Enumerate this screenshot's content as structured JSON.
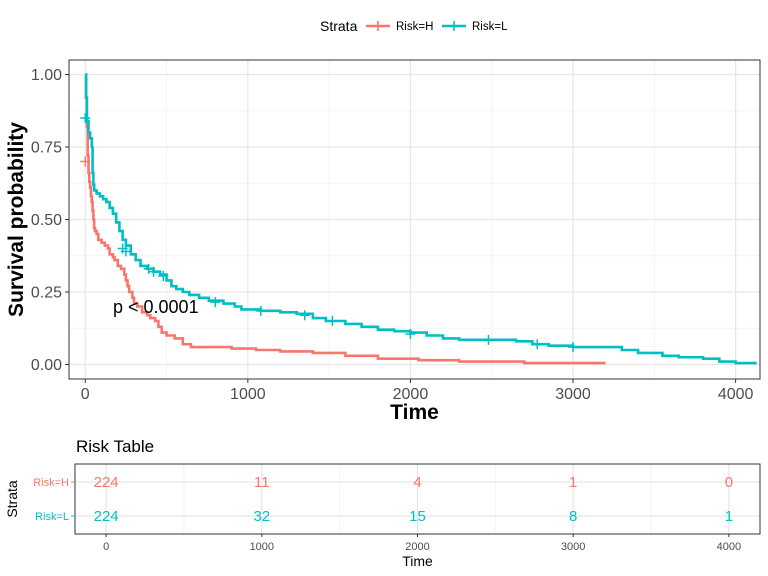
{
  "chart_data": [
    {
      "type": "line",
      "subtype": "kaplan-meier",
      "title": "",
      "xlabel": "Time",
      "ylabel": "Survival probability",
      "xlim": [
        -100,
        4150
      ],
      "ylim": [
        -0.05,
        1.05
      ],
      "x_ticks": [
        0,
        1000,
        2000,
        3000,
        4000
      ],
      "x_tick_labels": [
        "0",
        "1000",
        "2000",
        "3000",
        "4000"
      ],
      "y_ticks": [
        0,
        0.25,
        0.5,
        0.75,
        1.0
      ],
      "y_tick_labels": [
        "0.00",
        "0.25",
        "0.50",
        "0.75",
        "1.00"
      ],
      "grid": true,
      "legend": {
        "title": "Strata",
        "position": "top"
      },
      "annotation": "p < 0.0001",
      "series": [
        {
          "name": "Risk=H",
          "color": "#F8766D",
          "points": [
            [
              0,
              1.0
            ],
            [
              5,
              0.92
            ],
            [
              10,
              0.82
            ],
            [
              15,
              0.72
            ],
            [
              20,
              0.66
            ],
            [
              25,
              0.63
            ],
            [
              30,
              0.61
            ],
            [
              35,
              0.58
            ],
            [
              40,
              0.56
            ],
            [
              45,
              0.53
            ],
            [
              50,
              0.5
            ],
            [
              55,
              0.47
            ],
            [
              60,
              0.46
            ],
            [
              70,
              0.45
            ],
            [
              80,
              0.43
            ],
            [
              100,
              0.42
            ],
            [
              120,
              0.41
            ],
            [
              140,
              0.4
            ],
            [
              150,
              0.38
            ],
            [
              170,
              0.37
            ],
            [
              180,
              0.36
            ],
            [
              200,
              0.34
            ],
            [
              220,
              0.33
            ],
            [
              240,
              0.31
            ],
            [
              250,
              0.29
            ],
            [
              260,
              0.27
            ],
            [
              270,
              0.25
            ],
            [
              290,
              0.23
            ],
            [
              300,
              0.21
            ],
            [
              320,
              0.2
            ],
            [
              350,
              0.18
            ],
            [
              380,
              0.17
            ],
            [
              400,
              0.16
            ],
            [
              430,
              0.15
            ],
            [
              450,
              0.13
            ],
            [
              470,
              0.11
            ],
            [
              500,
              0.1
            ],
            [
              550,
              0.09
            ],
            [
              600,
              0.07
            ],
            [
              650,
              0.06
            ],
            [
              900,
              0.055
            ],
            [
              1050,
              0.05
            ],
            [
              1200,
              0.045
            ],
            [
              1400,
              0.04
            ],
            [
              1600,
              0.03
            ],
            [
              1800,
              0.02
            ],
            [
              2050,
              0.015
            ],
            [
              2300,
              0.01
            ],
            [
              2700,
              0.005
            ],
            [
              3200,
              0.005
            ]
          ],
          "censor_points": [
            [
              0,
              0.7
            ]
          ]
        },
        {
          "name": "Risk=L",
          "color": "#00BFC4",
          "points": [
            [
              0,
              1.0
            ],
            [
              5,
              0.92
            ],
            [
              10,
              0.84
            ],
            [
              20,
              0.8
            ],
            [
              30,
              0.78
            ],
            [
              40,
              0.75
            ],
            [
              45,
              0.66
            ],
            [
              50,
              0.62
            ],
            [
              55,
              0.6
            ],
            [
              70,
              0.59
            ],
            [
              90,
              0.58
            ],
            [
              110,
              0.57
            ],
            [
              130,
              0.56
            ],
            [
              150,
              0.54
            ],
            [
              170,
              0.52
            ],
            [
              190,
              0.49
            ],
            [
              210,
              0.46
            ],
            [
              230,
              0.43
            ],
            [
              250,
              0.41
            ],
            [
              280,
              0.38
            ],
            [
              310,
              0.36
            ],
            [
              340,
              0.34
            ],
            [
              380,
              0.33
            ],
            [
              420,
              0.32
            ],
            [
              460,
              0.31
            ],
            [
              500,
              0.29
            ],
            [
              530,
              0.27
            ],
            [
              560,
              0.26
            ],
            [
              600,
              0.25
            ],
            [
              640,
              0.24
            ],
            [
              700,
              0.23
            ],
            [
              760,
              0.22
            ],
            [
              850,
              0.21
            ],
            [
              920,
              0.2
            ],
            [
              960,
              0.19
            ],
            [
              1080,
              0.185
            ],
            [
              1200,
              0.18
            ],
            [
              1300,
              0.175
            ],
            [
              1400,
              0.16
            ],
            [
              1480,
              0.15
            ],
            [
              1600,
              0.14
            ],
            [
              1700,
              0.13
            ],
            [
              1800,
              0.12
            ],
            [
              1900,
              0.115
            ],
            [
              2000,
              0.11
            ],
            [
              2100,
              0.1
            ],
            [
              2200,
              0.09
            ],
            [
              2300,
              0.085
            ],
            [
              2500,
              0.085
            ],
            [
              2650,
              0.08
            ],
            [
              2750,
              0.07
            ],
            [
              2850,
              0.065
            ],
            [
              3000,
              0.06
            ],
            [
              3300,
              0.05
            ],
            [
              3400,
              0.04
            ],
            [
              3550,
              0.03
            ],
            [
              3650,
              0.025
            ],
            [
              3800,
              0.02
            ],
            [
              3900,
              0.01
            ],
            [
              4000,
              0.005
            ],
            [
              4130,
              0.005
            ]
          ],
          "censor_points": [
            [
              0,
              0.85
            ],
            [
              230,
              0.4
            ],
            [
              250,
              0.39
            ],
            [
              390,
              0.33
            ],
            [
              420,
              0.32
            ],
            [
              480,
              0.305
            ],
            [
              800,
              0.215
            ],
            [
              1080,
              0.185
            ],
            [
              1350,
              0.17
            ],
            [
              1520,
              0.15
            ],
            [
              2000,
              0.105
            ],
            [
              2480,
              0.085
            ],
            [
              2780,
              0.07
            ],
            [
              3000,
              0.06
            ]
          ]
        }
      ]
    },
    {
      "type": "table",
      "title": "Risk Table",
      "xlabel": "Time",
      "ylabel": "Strata",
      "x_ticks": [
        0,
        1000,
        2000,
        3000,
        4000
      ],
      "x_tick_labels": [
        "0",
        "1000",
        "2000",
        "3000",
        "4000"
      ],
      "rows": [
        {
          "name": "Risk=H",
          "color": "#F8766D",
          "values": [
            "224",
            "11",
            "4",
            "1",
            "0"
          ]
        },
        {
          "name": "Risk=L",
          "color": "#00BFC4",
          "values": [
            "224",
            "32",
            "15",
            "8",
            "1"
          ]
        }
      ]
    }
  ]
}
